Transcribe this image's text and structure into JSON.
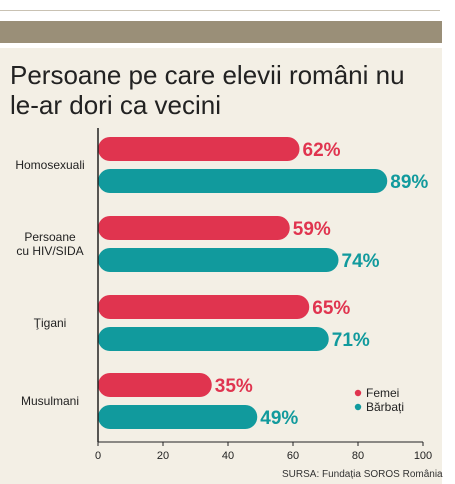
{
  "title": "Persoane pe care elevii români nu le-ar dori ca vecini",
  "source": "SURSA: Fundația SOROS România",
  "colors": {
    "femei": "#e0344f",
    "barbati": "#119a9d",
    "panel": "#f3efe5",
    "band": "#9a8f78"
  },
  "chart_data": {
    "type": "bar",
    "orientation": "horizontal",
    "categories": [
      "Homosexuali",
      "Persoane\ncu HIV/SIDA",
      "Ţigani",
      "Musulmani"
    ],
    "series": [
      {
        "name": "Femei",
        "values": [
          62,
          59,
          65,
          35
        ],
        "labels": [
          "62%",
          "59%",
          "65%",
          "35%"
        ]
      },
      {
        "name": "Bărbați",
        "values": [
          89,
          74,
          71,
          49
        ],
        "labels": [
          "89%",
          "74%",
          "71%",
          "49%"
        ]
      }
    ],
    "xlim": [
      0,
      100
    ],
    "xticks": [
      "0",
      "20",
      "40",
      "60",
      "80",
      "100"
    ],
    "legend": "right"
  }
}
